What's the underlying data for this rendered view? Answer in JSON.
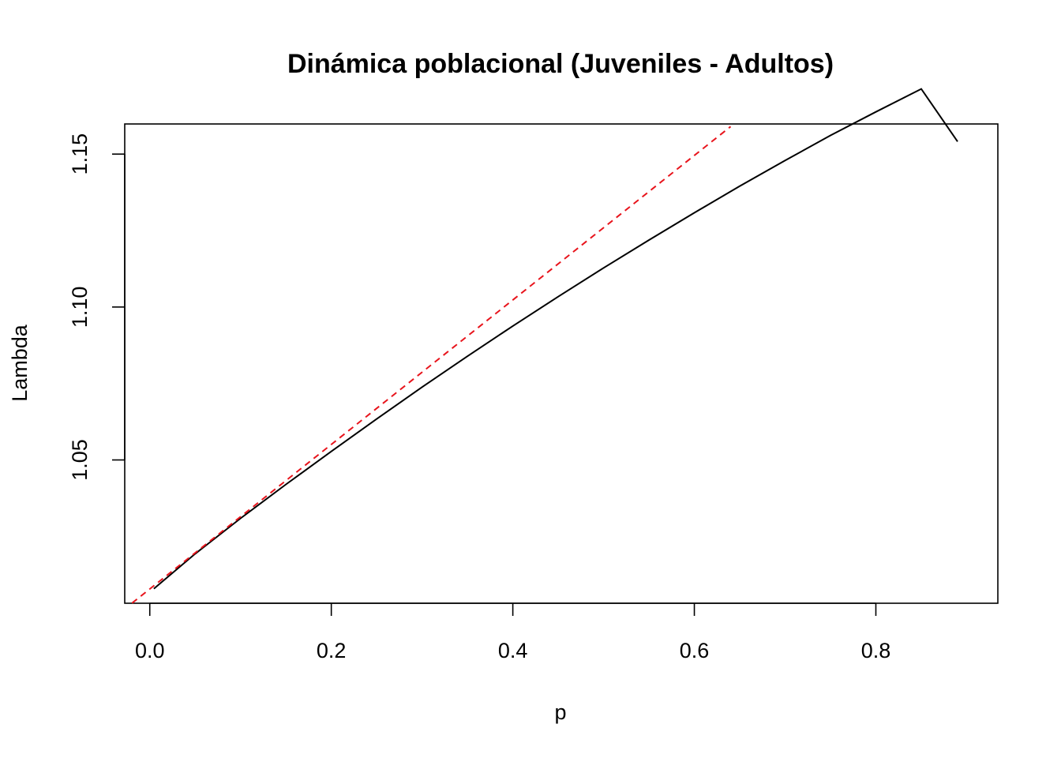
{
  "chart_data": {
    "type": "line",
    "title": "Dinámica poblacional (Juveniles - Adultos)",
    "xlabel": "p",
    "ylabel": "Lambda",
    "xlim": [
      -0.0276,
      0.9344
    ],
    "ylim": [
      1.00315,
      1.15985
    ],
    "x_ticks": [
      "0.0",
      "0.2",
      "0.4",
      "0.6",
      "0.8"
    ],
    "x_tick_values": [
      0.0,
      0.2,
      0.4,
      0.6,
      0.8
    ],
    "y_ticks": [
      "1.05",
      "1.10",
      "1.15"
    ],
    "y_tick_values": [
      1.05,
      1.1,
      1.15
    ],
    "grid": false,
    "legend": "none",
    "series": [
      {
        "style": "solid",
        "color": "#000000",
        "x": [
          0.0045,
          0.05,
          0.1,
          0.15,
          0.2,
          0.25,
          0.3,
          0.35,
          0.4,
          0.45,
          0.5,
          0.55,
          0.6,
          0.65,
          0.7,
          0.75,
          0.8,
          0.85,
          0.89
        ],
        "y": [
          1.0079,
          1.0193,
          1.0309,
          1.042,
          1.0528,
          1.0634,
          1.0738,
          1.0839,
          1.0938,
          1.1034,
          1.1128,
          1.1219,
          1.1308,
          1.1395,
          1.1479,
          1.1561,
          1.1638,
          1.1713,
          1.1541
        ]
      },
      {
        "style": "dashed",
        "color": "#e8141c",
        "x": [
          -0.0195,
          0.64
        ],
        "y": [
          1.0032,
          1.159
        ]
      }
    ]
  }
}
